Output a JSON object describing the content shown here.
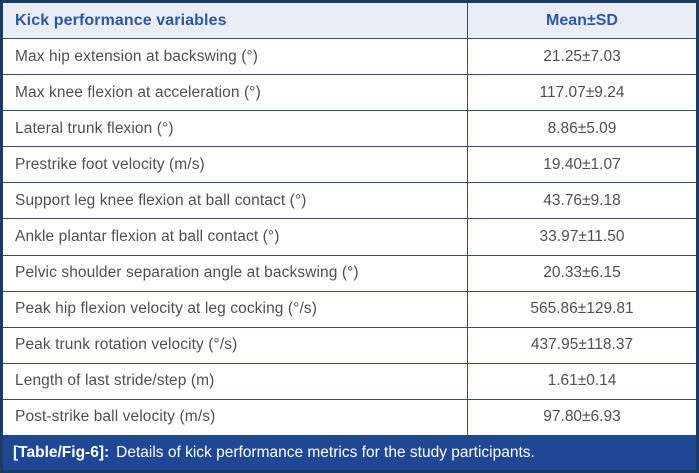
{
  "figure": {
    "header": {
      "variables_label": "Kick performance variables",
      "mean_sd_label": "Mean±SD"
    },
    "rows": [
      {
        "variable": "Max hip extension at backswing (°)",
        "value": "21.25±7.03"
      },
      {
        "variable": "Max knee flexion at acceleration (°)",
        "value": "117.07±9.24"
      },
      {
        "variable": "Lateral trunk flexion (°)",
        "value": "8.86±5.09"
      },
      {
        "variable": "Prestrike foot velocity (m/s)",
        "value": "19.40±1.07"
      },
      {
        "variable": "Support leg knee flexion at ball contact (°)",
        "value": "43.76±9.18"
      },
      {
        "variable": "Ankle plantar flexion at ball contact (°)",
        "value": "33.97±11.50"
      },
      {
        "variable": "Pelvic shoulder separation angle at backswing (°)",
        "value": "20.33±6.15"
      },
      {
        "variable": "Peak hip flexion velocity at leg cocking (°/s)",
        "value": "565.86±129.81"
      },
      {
        "variable": "Peak trunk rotation velocity (°/s)",
        "value": "437.95±118.37"
      },
      {
        "variable": "Length of last stride/step (m)",
        "value": "1.61±0.14"
      },
      {
        "variable": "Post-strike ball velocity (m/s)",
        "value": "97.80±6.93"
      }
    ],
    "caption": {
      "label": "[Table/Fig-6]:",
      "text": "Details of kick performance metrics for the study participants."
    },
    "colors": {
      "accent_blue": "#2b57a7",
      "header_bg": "#ebedf6",
      "grid_line": "#2c4f74",
      "outer_border": "#1d3c62",
      "caption_bg": "#1f4795",
      "body_text": "#4f5055"
    }
  },
  "chart_data": {
    "type": "table",
    "title": "[Table/Fig-6]: Details of kick performance metrics for the study participants.",
    "columns": [
      "Kick performance variables",
      "Mean±SD"
    ],
    "rows": [
      [
        "Max hip extension at backswing (°)",
        "21.25±7.03"
      ],
      [
        "Max knee flexion at acceleration (°)",
        "117.07±9.24"
      ],
      [
        "Lateral trunk flexion (°)",
        "8.86±5.09"
      ],
      [
        "Prestrike foot velocity (m/s)",
        "19.40±1.07"
      ],
      [
        "Support leg knee flexion at ball contact (°)",
        "43.76±9.18"
      ],
      [
        "Ankle plantar flexion at ball contact (°)",
        "33.97±11.50"
      ],
      [
        "Pelvic shoulder separation angle at backswing (°)",
        "20.33±6.15"
      ],
      [
        "Peak hip flexion velocity at leg cocking (°/s)",
        "565.86±129.81"
      ],
      [
        "Peak trunk rotation velocity (°/s)",
        "437.95±118.37"
      ],
      [
        "Length of last stride/step (m)",
        "1.61±0.14"
      ],
      [
        "Post-strike ball velocity (m/s)",
        "97.80±6.93"
      ]
    ]
  }
}
